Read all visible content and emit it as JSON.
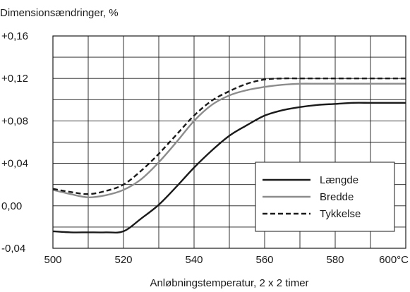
{
  "chart_data": {
    "type": "line",
    "title": "Dimensionsændringer, %",
    "xlabel": "Anløbningstemperatur, 2 x 2 timer",
    "ylabel": "",
    "xlim": [
      500,
      600
    ],
    "ylim": [
      -0.04,
      0.16
    ],
    "grid": true,
    "legend_position": "bottom-right",
    "x_ticks": [
      500,
      520,
      540,
      560,
      580,
      600
    ],
    "x_tick_labels": [
      "500",
      "520",
      "540",
      "560",
      "580",
      "600°C"
    ],
    "y_ticks": [
      -0.04,
      0.0,
      0.04,
      0.08,
      0.12,
      0.16
    ],
    "y_tick_labels": [
      "-0,04",
      "0,00",
      "+0,04",
      "+0,08",
      "+0,12",
      "+0,16"
    ],
    "x": [
      500,
      505,
      510,
      515,
      520,
      525,
      530,
      535,
      540,
      545,
      550,
      555,
      560,
      565,
      570,
      575,
      580,
      585,
      590,
      595,
      600
    ],
    "series": [
      {
        "name": "Længde",
        "color": "#1a1a1a",
        "dash": "solid",
        "values": [
          -0.024,
          -0.025,
          -0.025,
          -0.025,
          -0.024,
          -0.012,
          0.001,
          0.018,
          0.036,
          0.052,
          0.066,
          0.076,
          0.085,
          0.09,
          0.093,
          0.095,
          0.096,
          0.097,
          0.097,
          0.097,
          0.097
        ]
      },
      {
        "name": "Bredde",
        "color": "#8c8c8c",
        "dash": "solid",
        "values": [
          0.015,
          0.011,
          0.008,
          0.01,
          0.015,
          0.025,
          0.041,
          0.06,
          0.08,
          0.095,
          0.104,
          0.109,
          0.112,
          0.114,
          0.115,
          0.115,
          0.115,
          0.115,
          0.115,
          0.115,
          0.115
        ]
      },
      {
        "name": "Tykkelse",
        "color": "#1a1a1a",
        "dash": "dashed",
        "values": [
          0.016,
          0.013,
          0.011,
          0.014,
          0.02,
          0.033,
          0.049,
          0.067,
          0.085,
          0.099,
          0.108,
          0.115,
          0.119,
          0.12,
          0.12,
          0.12,
          0.12,
          0.12,
          0.12,
          0.12,
          0.12
        ]
      }
    ]
  }
}
